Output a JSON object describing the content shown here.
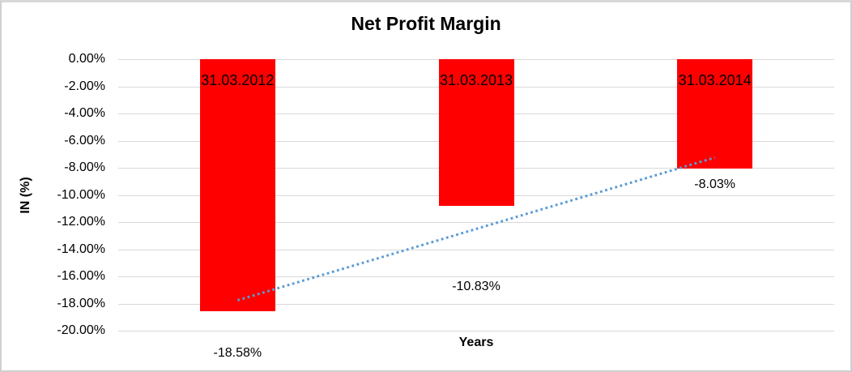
{
  "chart_data": {
    "type": "bar",
    "title": "Net Profit Margin",
    "xlabel": "Years",
    "ylabel": "IN (%)",
    "categories": [
      "31.03.2012",
      "31.03.2013",
      "31.03.2014"
    ],
    "values": [
      -18.58,
      -10.83,
      -8.03
    ],
    "value_labels": [
      "-18.58%",
      "-10.83%",
      "-8.03%"
    ],
    "ylim": [
      0,
      -20
    ],
    "y_tick_step": -2,
    "y_ticks": [
      "0.00%",
      "-2.00%",
      "-4.00%",
      "-6.00%",
      "-8.00%",
      "-10.00%",
      "-12.00%",
      "-14.00%",
      "-16.00%",
      "-18.00%",
      "-20.00%"
    ],
    "grid": true,
    "legend": "none",
    "bar_color": "#ff0000",
    "category_label_position": "inside-top",
    "value_label_positions_pct": [
      -21.7,
      -16.75,
      -9.28
    ],
    "trendline": {
      "type": "linear",
      "style": "dotted",
      "color": "#5b9bd5",
      "start_pct": -17.76,
      "end_pct": -7.25
    }
  }
}
